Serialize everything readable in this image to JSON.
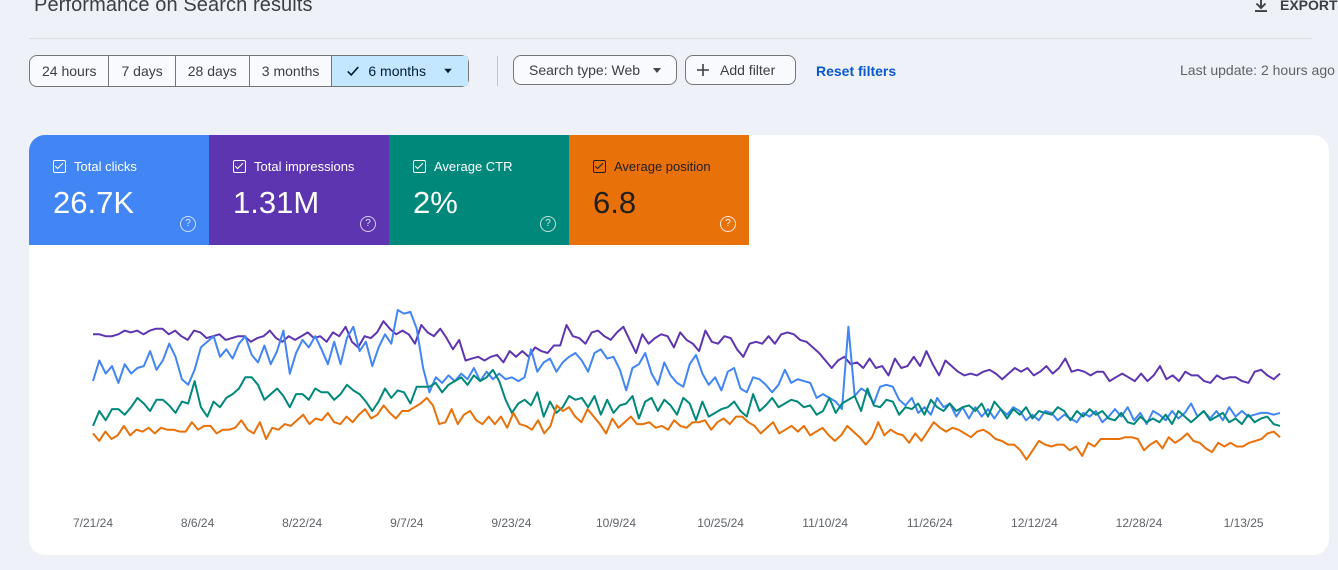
{
  "header": {
    "title": "Performance on Search results",
    "export_label": "EXPORT"
  },
  "filters": {
    "ranges": [
      "24 hours",
      "7 days",
      "28 days",
      "3 months",
      "6 months"
    ],
    "active_range": "6 months",
    "search_type": "Search type: Web",
    "add_filter": "Add filter",
    "reset_filters": "Reset filters",
    "last_update": "Last update: 2 hours ago"
  },
  "metrics": {
    "clicks": {
      "label": "Total clicks",
      "value": "26.7K",
      "color": "#4285f4"
    },
    "impressions": {
      "label": "Total impressions",
      "value": "1.31M",
      "color": "#5e35b1"
    },
    "ctr": {
      "label": "Average CTR",
      "value": "2%",
      "color": "#00897b"
    },
    "position": {
      "label": "Average position",
      "value": "6.8",
      "color": "#e8710a"
    }
  },
  "chart_data": {
    "type": "line",
    "x_tick_labels": [
      "7/21/24",
      "8/6/24",
      "8/22/24",
      "9/7/24",
      "9/23/24",
      "10/9/24",
      "10/25/24",
      "11/10/24",
      "11/26/24",
      "12/12/24",
      "12/28/24",
      "1/13/25"
    ],
    "y_axis_visible": false,
    "grid": false,
    "series": [
      {
        "name": "Total impressions",
        "color": "#5e35b1",
        "values": [
          0.87,
          0.87,
          0.86,
          0.86,
          0.87,
          0.89,
          0.88,
          0.89,
          0.87,
          0.89,
          0.9,
          0.9,
          0.87,
          0.89,
          0.86,
          0.84,
          0.89,
          0.88,
          0.85,
          0.86,
          0.87,
          0.84,
          0.85,
          0.86,
          0.86,
          0.83,
          0.85,
          0.86,
          0.89,
          0.85,
          0.83,
          0.86,
          0.84,
          0.86,
          0.88,
          0.85,
          0.86,
          0.83,
          0.88,
          0.86,
          0.91,
          0.83,
          0.8,
          0.86,
          0.85,
          0.88,
          0.94,
          0.9,
          0.87,
          0.89,
          0.87,
          0.82,
          0.92,
          0.88,
          0.86,
          0.9,
          0.85,
          0.79,
          0.84,
          0.73,
          0.74,
          0.75,
          0.73,
          0.75,
          0.76,
          0.72,
          0.78,
          0.75,
          0.78,
          0.75,
          0.8,
          0.78,
          0.77,
          0.81,
          0.81,
          0.92,
          0.86,
          0.85,
          0.82,
          0.88,
          0.89,
          0.86,
          0.84,
          0.88,
          0.91,
          0.84,
          0.77,
          0.87,
          0.82,
          0.85,
          0.87,
          0.86,
          0.8,
          0.88,
          0.84,
          0.82,
          0.78,
          0.89,
          0.83,
          0.82,
          0.86,
          0.85,
          0.79,
          0.75,
          0.82,
          0.83,
          0.82,
          0.86,
          0.82,
          0.87,
          0.88,
          0.87,
          0.84,
          0.83,
          0.8,
          0.77,
          0.73,
          0.69,
          0.73,
          0.75,
          0.71,
          0.72,
          0.69,
          0.74,
          0.69,
          0.7,
          0.65,
          0.74,
          0.69,
          0.7,
          0.75,
          0.7,
          0.78,
          0.71,
          0.65,
          0.73,
          0.7,
          0.67,
          0.65,
          0.66,
          0.65,
          0.67,
          0.68,
          0.66,
          0.63,
          0.66,
          0.69,
          0.67,
          0.69,
          0.65,
          0.67,
          0.7,
          0.66,
          0.69,
          0.74,
          0.67,
          0.68,
          0.67,
          0.65,
          0.67,
          0.67,
          0.62,
          0.64,
          0.66,
          0.64,
          0.62,
          0.66,
          0.62,
          0.65,
          0.7,
          0.63,
          0.65,
          0.62,
          0.67,
          0.65,
          0.65,
          0.62,
          0.61,
          0.65,
          0.63,
          0.64,
          0.64,
          0.62,
          0.61,
          0.67,
          0.68,
          0.65,
          0.63,
          0.66
        ]
      },
      {
        "name": "Total clicks",
        "color": "#4285f4",
        "values": [
          0.62,
          0.73,
          0.66,
          0.7,
          0.61,
          0.71,
          0.66,
          0.69,
          0.7,
          0.78,
          0.68,
          0.73,
          0.82,
          0.75,
          0.63,
          0.6,
          0.68,
          0.8,
          0.83,
          0.86,
          0.75,
          0.79,
          0.74,
          0.82,
          0.86,
          0.76,
          0.72,
          0.81,
          0.71,
          0.78,
          0.89,
          0.66,
          0.77,
          0.84,
          0.8,
          0.86,
          0.79,
          0.71,
          0.83,
          0.71,
          0.85,
          0.91,
          0.78,
          0.83,
          0.7,
          0.8,
          0.87,
          0.82,
          1.0,
          0.98,
          0.99,
          0.9,
          0.69,
          0.56,
          0.64,
          0.61,
          0.65,
          0.62,
          0.66,
          0.63,
          0.69,
          0.62,
          0.67,
          0.63,
          0.66,
          0.63,
          0.64,
          0.62,
          0.64,
          0.79,
          0.67,
          0.72,
          0.74,
          0.67,
          0.72,
          0.75,
          0.77,
          0.73,
          0.67,
          0.77,
          0.79,
          0.74,
          0.75,
          0.68,
          0.57,
          0.69,
          0.71,
          0.77,
          0.66,
          0.6,
          0.72,
          0.65,
          0.61,
          0.59,
          0.71,
          0.76,
          0.66,
          0.6,
          0.64,
          0.57,
          0.67,
          0.69,
          0.58,
          0.56,
          0.64,
          0.63,
          0.6,
          0.56,
          0.6,
          0.68,
          0.61,
          0.63,
          0.62,
          0.61,
          0.53,
          0.55,
          0.53,
          0.51,
          0.47,
          0.91,
          0.54,
          0.58,
          0.56,
          0.5,
          0.59,
          0.6,
          0.59,
          0.52,
          0.49,
          0.53,
          0.45,
          0.48,
          0.44,
          0.53,
          0.48,
          0.5,
          0.43,
          0.48,
          0.42,
          0.48,
          0.43,
          0.47,
          0.42,
          0.47,
          0.44,
          0.48,
          0.46,
          0.41,
          0.44,
          0.41,
          0.46,
          0.45,
          0.41,
          0.44,
          0.42,
          0.4,
          0.45,
          0.43,
          0.46,
          0.4,
          0.43,
          0.47,
          0.43,
          0.48,
          0.41,
          0.45,
          0.39,
          0.46,
          0.44,
          0.41,
          0.46,
          0.42,
          0.45,
          0.5,
          0.43,
          0.46,
          0.42,
          0.46,
          0.41,
          0.48,
          0.43,
          0.46,
          0.43,
          0.44,
          0.45,
          0.45,
          0.44,
          0.45
        ]
      },
      {
        "name": "Average CTR",
        "color": "#00897b",
        "values": [
          0.38,
          0.46,
          0.41,
          0.47,
          0.47,
          0.44,
          0.48,
          0.53,
          0.5,
          0.46,
          0.52,
          0.52,
          0.49,
          0.45,
          0.51,
          0.5,
          0.62,
          0.48,
          0.43,
          0.51,
          0.48,
          0.53,
          0.55,
          0.58,
          0.64,
          0.64,
          0.6,
          0.52,
          0.55,
          0.58,
          0.54,
          0.48,
          0.55,
          0.55,
          0.52,
          0.58,
          0.56,
          0.56,
          0.52,
          0.55,
          0.6,
          0.57,
          0.55,
          0.51,
          0.46,
          0.51,
          0.58,
          0.53,
          0.57,
          0.56,
          0.5,
          0.59,
          0.59,
          0.59,
          0.61,
          0.56,
          0.6,
          0.62,
          0.64,
          0.6,
          0.65,
          0.62,
          0.64,
          0.68,
          0.62,
          0.52,
          0.45,
          0.5,
          0.52,
          0.49,
          0.56,
          0.43,
          0.51,
          0.45,
          0.48,
          0.54,
          0.52,
          0.53,
          0.48,
          0.54,
          0.44,
          0.52,
          0.45,
          0.49,
          0.5,
          0.54,
          0.42,
          0.51,
          0.53,
          0.46,
          0.52,
          0.49,
          0.44,
          0.53,
          0.5,
          0.41,
          0.51,
          0.43,
          0.45,
          0.47,
          0.48,
          0.51,
          0.46,
          0.43,
          0.55,
          0.46,
          0.49,
          0.53,
          0.48,
          0.5,
          0.52,
          0.51,
          0.48,
          0.49,
          0.44,
          0.46,
          0.53,
          0.45,
          0.5,
          0.52,
          0.54,
          0.46,
          0.58,
          0.49,
          0.48,
          0.52,
          0.51,
          0.44,
          0.48,
          0.47,
          0.5,
          0.44,
          0.52,
          0.48,
          0.46,
          0.5,
          0.46,
          0.48,
          0.49,
          0.46,
          0.5,
          0.43,
          0.51,
          0.47,
          0.42,
          0.47,
          0.44,
          0.48,
          0.42,
          0.46,
          0.45,
          0.44,
          0.48,
          0.46,
          0.41,
          0.46,
          0.43,
          0.47,
          0.44,
          0.46,
          0.42,
          0.41,
          0.45,
          0.4,
          0.39,
          0.43,
          0.4,
          0.42,
          0.4,
          0.44,
          0.39,
          0.46,
          0.43,
          0.4,
          0.43,
          0.46,
          0.41,
          0.43,
          0.45,
          0.4,
          0.42,
          0.39,
          0.44,
          0.4,
          0.42,
          0.43,
          0.39,
          0.38
        ]
      },
      {
        "name": "Average position",
        "color": "#e8710a",
        "values": [
          0.34,
          0.3,
          0.35,
          0.31,
          0.33,
          0.38,
          0.33,
          0.36,
          0.35,
          0.37,
          0.34,
          0.37,
          0.36,
          0.36,
          0.35,
          0.35,
          0.4,
          0.36,
          0.38,
          0.38,
          0.34,
          0.36,
          0.36,
          0.37,
          0.41,
          0.36,
          0.34,
          0.4,
          0.31,
          0.37,
          0.36,
          0.39,
          0.38,
          0.41,
          0.44,
          0.39,
          0.42,
          0.41,
          0.45,
          0.4,
          0.39,
          0.43,
          0.4,
          0.44,
          0.47,
          0.42,
          0.44,
          0.49,
          0.45,
          0.42,
          0.46,
          0.46,
          0.48,
          0.5,
          0.53,
          0.49,
          0.39,
          0.4,
          0.47,
          0.39,
          0.44,
          0.46,
          0.41,
          0.39,
          0.43,
          0.39,
          0.43,
          0.37,
          0.45,
          0.39,
          0.38,
          0.36,
          0.41,
          0.34,
          0.38,
          0.49,
          0.46,
          0.48,
          0.43,
          0.4,
          0.47,
          0.43,
          0.39,
          0.34,
          0.42,
          0.37,
          0.4,
          0.43,
          0.39,
          0.39,
          0.4,
          0.37,
          0.38,
          0.36,
          0.41,
          0.38,
          0.37,
          0.4,
          0.4,
          0.41,
          0.36,
          0.4,
          0.42,
          0.39,
          0.43,
          0.43,
          0.4,
          0.38,
          0.34,
          0.37,
          0.4,
          0.34,
          0.36,
          0.38,
          0.35,
          0.38,
          0.33,
          0.35,
          0.37,
          0.33,
          0.3,
          0.33,
          0.38,
          0.35,
          0.32,
          0.28,
          0.32,
          0.4,
          0.33,
          0.36,
          0.34,
          0.33,
          0.29,
          0.34,
          0.3,
          0.35,
          0.4,
          0.37,
          0.35,
          0.37,
          0.36,
          0.34,
          0.32,
          0.35,
          0.36,
          0.34,
          0.31,
          0.3,
          0.28,
          0.28,
          0.25,
          0.2,
          0.25,
          0.3,
          0.28,
          0.27,
          0.28,
          0.28,
          0.25,
          0.27,
          0.22,
          0.29,
          0.27,
          0.31,
          0.31,
          0.31,
          0.31,
          0.32,
          0.32,
          0.31,
          0.25,
          0.28,
          0.3,
          0.26,
          0.32,
          0.29,
          0.31,
          0.34,
          0.3,
          0.29,
          0.26,
          0.24,
          0.29,
          0.27,
          0.29,
          0.27,
          0.27,
          0.29,
          0.3,
          0.31,
          0.34,
          0.35,
          0.32
        ]
      }
    ]
  }
}
